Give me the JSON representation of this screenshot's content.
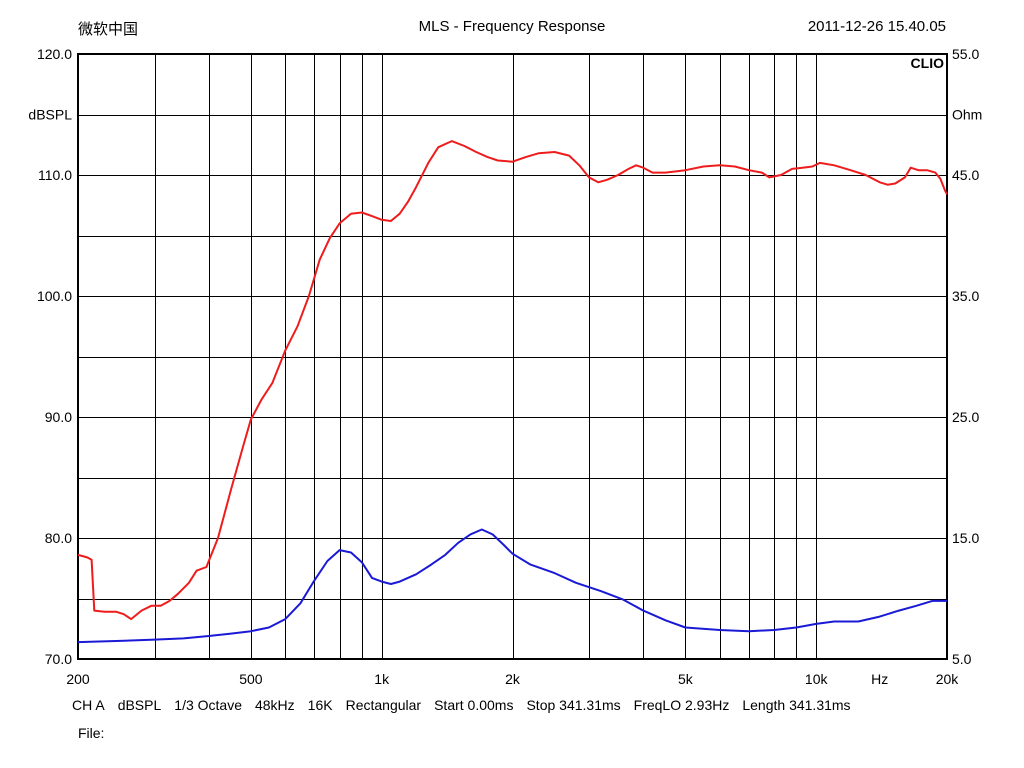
{
  "header": {
    "app_name": "微软中国",
    "title": "MLS - Frequency Response",
    "timestamp": "2011-12-26 15.40.05"
  },
  "chart_data": {
    "type": "line",
    "title": "MLS - Frequency Response",
    "brand_label": "CLIO",
    "x_scale": "log",
    "xlim": [
      200,
      20000
    ],
    "x_unit": "Hz",
    "x_tick_labels": [
      "200",
      "500",
      "1k",
      "2k",
      "5k",
      "10k",
      "Hz",
      "20k"
    ],
    "x_gridlines": [
      300,
      400,
      500,
      600,
      700,
      800,
      900,
      1000,
      2000,
      3000,
      4000,
      5000,
      6000,
      7000,
      8000,
      9000,
      10000
    ],
    "left_axis": {
      "label": "dBSPL",
      "ylim": [
        70,
        120
      ],
      "ticks": [
        "70.0",
        "80.0",
        "90.0",
        "100.0",
        "110.0",
        "120.0"
      ]
    },
    "right_axis": {
      "label": "Ohm",
      "ylim": [
        5,
        55
      ],
      "ticks": [
        "5.0",
        "15.0",
        "25.0",
        "35.0",
        "45.0",
        "55.0"
      ]
    },
    "grid": true,
    "series": [
      {
        "color": "#ee1c1c",
        "axis": "left",
        "points": [
          [
            200,
            78.6
          ],
          [
            210,
            78.4
          ],
          [
            215,
            78.2
          ],
          [
            218,
            74.0
          ],
          [
            230,
            73.9
          ],
          [
            245,
            73.9
          ],
          [
            255,
            73.7
          ],
          [
            265,
            73.3
          ],
          [
            280,
            74.0
          ],
          [
            295,
            74.4
          ],
          [
            310,
            74.4
          ],
          [
            325,
            74.8
          ],
          [
            340,
            75.4
          ],
          [
            360,
            76.3
          ],
          [
            375,
            77.3
          ],
          [
            395,
            77.6
          ],
          [
            420,
            80.0
          ],
          [
            450,
            84.0
          ],
          [
            480,
            87.6
          ],
          [
            500,
            89.8
          ],
          [
            530,
            91.5
          ],
          [
            560,
            92.8
          ],
          [
            600,
            95.5
          ],
          [
            640,
            97.5
          ],
          [
            680,
            100.0
          ],
          [
            720,
            103.0
          ],
          [
            760,
            104.8
          ],
          [
            800,
            106.0
          ],
          [
            850,
            106.8
          ],
          [
            900,
            106.9
          ],
          [
            950,
            106.6
          ],
          [
            1000,
            106.3
          ],
          [
            1050,
            106.2
          ],
          [
            1100,
            106.8
          ],
          [
            1150,
            107.8
          ],
          [
            1200,
            109.0
          ],
          [
            1280,
            111.0
          ],
          [
            1350,
            112.3
          ],
          [
            1450,
            112.8
          ],
          [
            1550,
            112.4
          ],
          [
            1650,
            111.9
          ],
          [
            1750,
            111.5
          ],
          [
            1850,
            111.2
          ],
          [
            2000,
            111.1
          ],
          [
            2150,
            111.5
          ],
          [
            2300,
            111.8
          ],
          [
            2500,
            111.9
          ],
          [
            2700,
            111.6
          ],
          [
            2850,
            110.8
          ],
          [
            3000,
            109.8
          ],
          [
            3150,
            109.4
          ],
          [
            3300,
            109.6
          ],
          [
            3500,
            110.0
          ],
          [
            3700,
            110.5
          ],
          [
            3850,
            110.8
          ],
          [
            4000,
            110.6
          ],
          [
            4200,
            110.2
          ],
          [
            4500,
            110.2
          ],
          [
            5000,
            110.4
          ],
          [
            5500,
            110.7
          ],
          [
            6000,
            110.8
          ],
          [
            6500,
            110.7
          ],
          [
            7000,
            110.4
          ],
          [
            7500,
            110.2
          ],
          [
            7800,
            109.8
          ],
          [
            8300,
            110.0
          ],
          [
            8800,
            110.5
          ],
          [
            9300,
            110.6
          ],
          [
            9800,
            110.7
          ],
          [
            10200,
            111.0
          ],
          [
            11000,
            110.8
          ],
          [
            12000,
            110.4
          ],
          [
            13000,
            110.0
          ],
          [
            14000,
            109.4
          ],
          [
            14600,
            109.2
          ],
          [
            15200,
            109.3
          ],
          [
            16000,
            109.8
          ],
          [
            16500,
            110.6
          ],
          [
            17200,
            110.4
          ],
          [
            18000,
            110.4
          ],
          [
            18800,
            110.2
          ],
          [
            19300,
            109.7
          ],
          [
            19800,
            108.7
          ],
          [
            20000,
            108.4
          ]
        ]
      },
      {
        "color": "#1a1ad6",
        "axis": "right",
        "points": [
          [
            200,
            6.4
          ],
          [
            250,
            6.5
          ],
          [
            300,
            6.6
          ],
          [
            350,
            6.7
          ],
          [
            400,
            6.9
          ],
          [
            450,
            7.1
          ],
          [
            500,
            7.3
          ],
          [
            550,
            7.6
          ],
          [
            600,
            8.3
          ],
          [
            650,
            9.6
          ],
          [
            700,
            11.5
          ],
          [
            750,
            13.1
          ],
          [
            800,
            14.0
          ],
          [
            850,
            13.8
          ],
          [
            900,
            13.0
          ],
          [
            950,
            11.7
          ],
          [
            1000,
            11.4
          ],
          [
            1050,
            11.2
          ],
          [
            1100,
            11.4
          ],
          [
            1200,
            12.0
          ],
          [
            1300,
            12.8
          ],
          [
            1400,
            13.6
          ],
          [
            1500,
            14.6
          ],
          [
            1600,
            15.3
          ],
          [
            1700,
            15.7
          ],
          [
            1800,
            15.3
          ],
          [
            1900,
            14.5
          ],
          [
            2000,
            13.7
          ],
          [
            2200,
            12.8
          ],
          [
            2500,
            12.1
          ],
          [
            2800,
            11.3
          ],
          [
            3200,
            10.6
          ],
          [
            3600,
            9.9
          ],
          [
            4000,
            9.0
          ],
          [
            4500,
            8.2
          ],
          [
            5000,
            7.6
          ],
          [
            6000,
            7.4
          ],
          [
            7000,
            7.3
          ],
          [
            8000,
            7.4
          ],
          [
            9000,
            7.6
          ],
          [
            10000,
            7.9
          ],
          [
            11000,
            8.1
          ],
          [
            12500,
            8.1
          ],
          [
            14000,
            8.5
          ],
          [
            15500,
            9.0
          ],
          [
            17000,
            9.4
          ],
          [
            18500,
            9.8
          ],
          [
            20000,
            9.8
          ]
        ]
      }
    ]
  },
  "footer": {
    "items": [
      "CH A",
      "dBSPL",
      "1/3 Octave",
      "48kHz",
      "16K",
      "Rectangular",
      "Start 0.00ms",
      "Stop 341.31ms",
      "FreqLO 2.93Hz",
      "Length 341.31ms"
    ],
    "file_label": "File:"
  }
}
